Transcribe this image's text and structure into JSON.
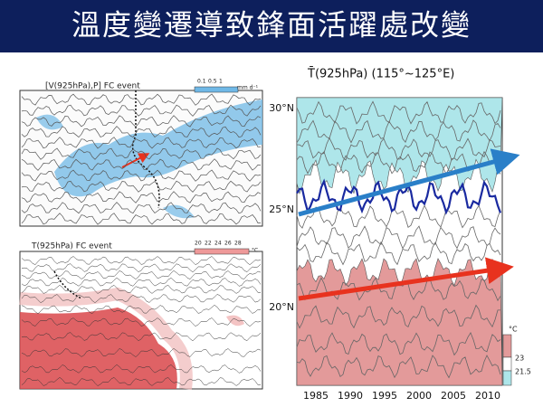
{
  "header": {
    "title": "溫度變遷導致鋒面活躍處改變"
  },
  "panels": [
    {
      "label": "[V(925hPa),P] FC event",
      "colorbar": [
        "0.1",
        "0.5",
        "1",
        "mm d⁻¹"
      ]
    },
    {
      "label": "T(925hPa) FC event",
      "colorbar": [
        "20",
        "22",
        "24",
        "26",
        "28",
        "°C"
      ]
    }
  ],
  "hovmoller": {
    "title": "T̄(925hPa) (115°~125°E)",
    "y_labels": [
      "30°N",
      "25°N",
      "20°N"
    ],
    "x_labels": [
      "1985",
      "1990",
      "1995",
      "2000",
      "2005",
      "2010"
    ],
    "colorbar": [
      "°C",
      "23",
      "21.5"
    ]
  }
}
